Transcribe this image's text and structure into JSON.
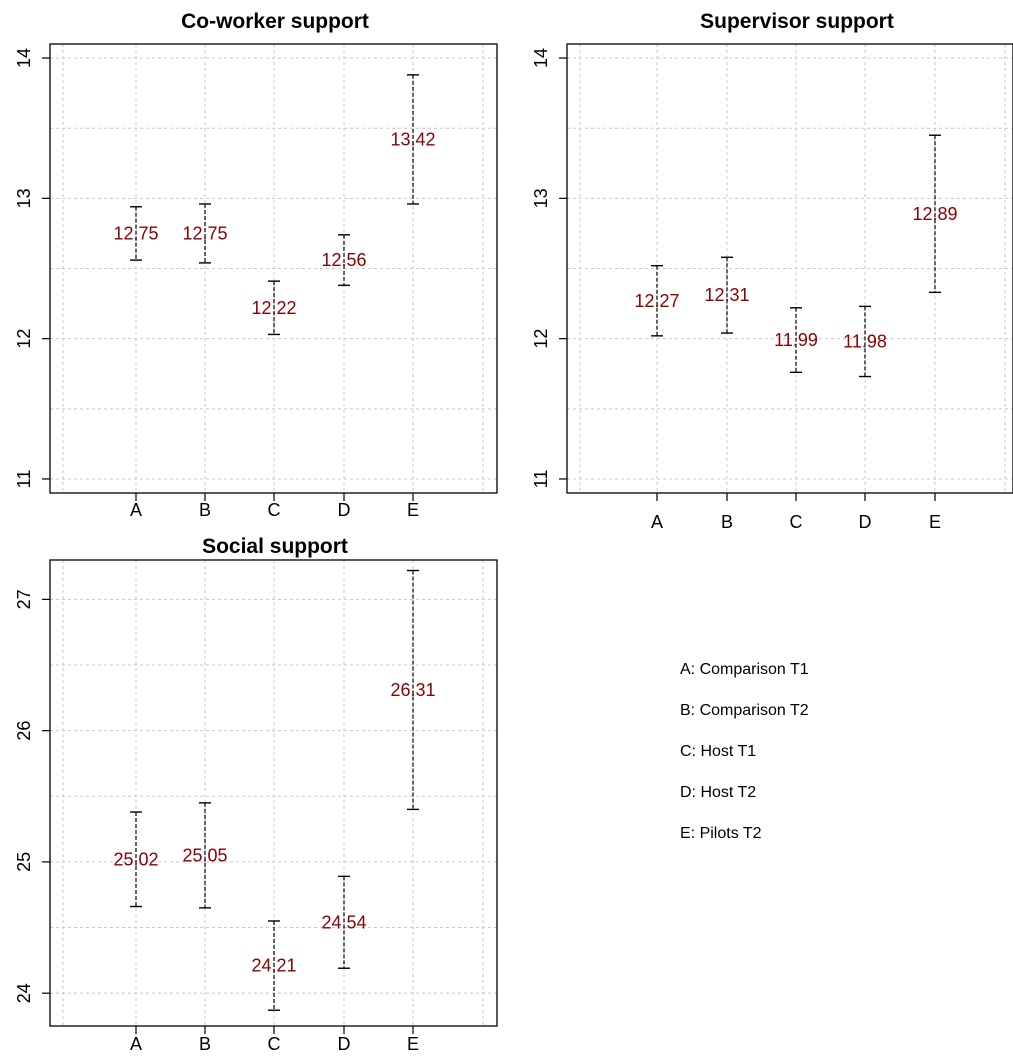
{
  "chart_data": [
    {
      "type": "errorbar",
      "title": "Co-worker support",
      "categories": [
        "A",
        "B",
        "C",
        "D",
        "E"
      ],
      "values": [
        12.75,
        12.75,
        12.22,
        12.56,
        13.42
      ],
      "lower": [
        12.56,
        12.54,
        12.03,
        12.38,
        12.96
      ],
      "upper": [
        12.94,
        12.96,
        12.41,
        12.74,
        13.88
      ],
      "value_labels": [
        "12.75",
        "12.75",
        "12.22",
        "12.56",
        "13.42"
      ],
      "yticks": [
        11,
        12,
        13,
        14
      ],
      "ylim": [
        10.9,
        14.1
      ],
      "grid": true
    },
    {
      "type": "errorbar",
      "title": "Supervisor support",
      "categories": [
        "A",
        "B",
        "C",
        "D",
        "E"
      ],
      "values": [
        12.27,
        12.31,
        11.99,
        11.98,
        12.89
      ],
      "lower": [
        12.02,
        12.04,
        11.76,
        11.73,
        12.33
      ],
      "upper": [
        12.52,
        12.58,
        12.22,
        12.23,
        13.45
      ],
      "value_labels": [
        "12.27",
        "12.31",
        "11.99",
        "11.98",
        "12.89"
      ],
      "yticks": [
        11,
        12,
        13,
        14
      ],
      "ylim": [
        10.9,
        14.1
      ],
      "grid": true
    },
    {
      "type": "errorbar",
      "title": "Social support",
      "categories": [
        "A",
        "B",
        "C",
        "D",
        "E"
      ],
      "values": [
        25.02,
        25.05,
        24.21,
        24.54,
        26.31
      ],
      "lower": [
        24.66,
        24.65,
        23.87,
        24.19,
        25.4
      ],
      "upper": [
        25.38,
        25.45,
        24.55,
        24.89,
        27.22
      ],
      "value_labels": [
        "25.02",
        "25.05",
        "24.21",
        "24.54",
        "26.31"
      ],
      "yticks": [
        24,
        25,
        26,
        27
      ],
      "ylim": [
        23.75,
        27.3
      ],
      "grid": true
    }
  ],
  "legend": {
    "items": [
      "A: Comparison T1",
      "B: Comparison T2",
      "C: Host T1",
      "D: Host T2",
      "E: Pilots T2"
    ]
  },
  "colors": {
    "value_label": "#8b0000",
    "grid": "#c8c8c8",
    "axis": "#000000"
  }
}
